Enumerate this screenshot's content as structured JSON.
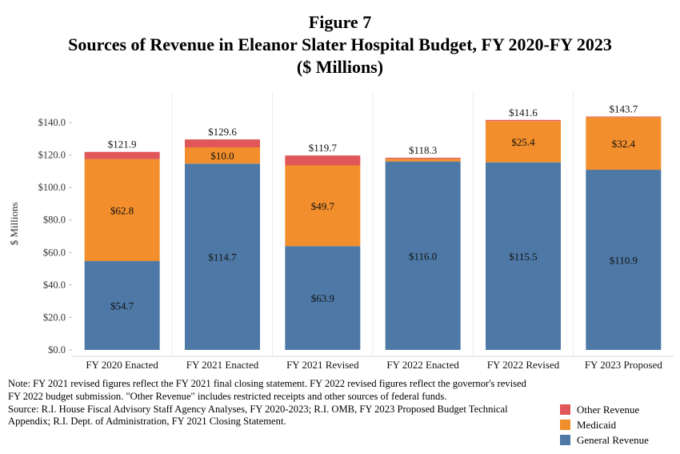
{
  "figure_label": "Figure 7",
  "title": "Sources of Revenue in Eleanor Slater Hospital Budget, FY 2020-FY 2023",
  "subtitle": "($ Millions)",
  "chart_data": {
    "type": "bar",
    "stacked": true,
    "categories": [
      "FY 2020 Enacted",
      "FY 2021 Enacted",
      "FY 2021 Revised",
      "FY 2022 Enacted",
      "FY 2022 Revised",
      "FY 2023 Proposed"
    ],
    "series": [
      {
        "name": "General Revenue",
        "color": "#4e79a7",
        "values": [
          54.7,
          114.7,
          63.9,
          116.0,
          115.5,
          110.9
        ],
        "labels": [
          "$54.7",
          "$114.7",
          "$63.9",
          "$116.0",
          "$115.5",
          "$110.9"
        ]
      },
      {
        "name": "Medicaid",
        "color": "#f28e2b",
        "values": [
          62.8,
          10.0,
          49.7,
          1.7,
          25.4,
          32.4
        ],
        "labels": [
          "$62.8",
          "$10.0",
          "$49.7",
          "",
          "$25.4",
          "$32.4"
        ]
      },
      {
        "name": "Other Revenue",
        "color": "#e15759",
        "values": [
          4.4,
          4.9,
          6.1,
          0.6,
          0.7,
          0.4
        ],
        "labels": [
          "",
          "",
          "",
          "",
          "",
          ""
        ]
      }
    ],
    "totals": [
      "$121.9",
      "$129.6",
      "$119.7",
      "$118.3",
      "$141.6",
      "$143.7"
    ],
    "ylabel": "$ Millions",
    "ylim": [
      0,
      148
    ],
    "yticks": [
      0,
      20,
      40,
      60,
      80,
      100,
      120,
      140
    ],
    "ytick_labels": [
      "$0.0",
      "$20.0",
      "$40.0",
      "$60.0",
      "$80.0",
      "$100.0",
      "$120.0",
      "$140.0"
    ],
    "grid": false,
    "legend_position": "bottom-right",
    "legend": [
      "Other Revenue",
      "Medicaid",
      "General Revenue"
    ]
  },
  "notes": {
    "note": "Note: FY 2021 revised figures reflect the FY 2021 final closing statement. FY 2022 revised figures reflect the governor's revised FY 2022 budget submission. \"Other Revenue\" includes restricted receipts and other sources of federal funds.",
    "source": "Source: R.I. House Fiscal Advisory Staff Agency Analyses, FY 2020-2023; R.I. OMB, FY 2023 Proposed Budget Technical Appendix; R.I. Dept. of Administration, FY 2021 Closing Statement."
  }
}
